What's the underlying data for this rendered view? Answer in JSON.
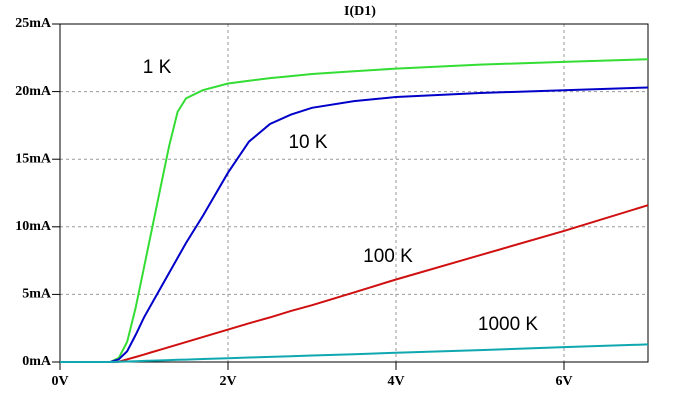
{
  "chart_data": {
    "type": "line",
    "title": "I(D1)",
    "title_color": "#00c000",
    "x": [
      0,
      0.6,
      0.7,
      0.8,
      0.9,
      1.0,
      1.1,
      1.2,
      1.3,
      1.4,
      1.5,
      1.7,
      2.0,
      2.25,
      2.5,
      2.75,
      3,
      3.5,
      4,
      5,
      6,
      7
    ],
    "series": [
      {
        "name": "1 K",
        "color": "#33dd33",
        "values": [
          0,
          0,
          0.3,
          1.5,
          4,
          7,
          10,
          13,
          16,
          18.5,
          19.5,
          20.1,
          20.6,
          20.8,
          21.0,
          21.15,
          21.3,
          21.5,
          21.7,
          22.0,
          22.2,
          22.4
        ]
      },
      {
        "name": "10 K",
        "color": "#0000c8",
        "values": [
          0,
          0,
          0.2,
          0.8,
          2,
          3.3,
          4.4,
          5.5,
          6.6,
          7.7,
          8.8,
          10.8,
          14,
          16.3,
          17.6,
          18.3,
          18.8,
          19.3,
          19.6,
          19.9,
          20.1,
          20.3
        ]
      },
      {
        "name": "100 K",
        "color": "#d01010",
        "values": [
          0,
          0,
          0.02,
          0.2,
          0.37,
          0.55,
          0.74,
          0.92,
          1.1,
          1.29,
          1.47,
          1.84,
          2.4,
          2.86,
          3.3,
          3.78,
          4.2,
          5.15,
          6.1,
          7.9,
          9.7,
          11.6
        ]
      },
      {
        "name": "1000 K",
        "color": "#10a8b0",
        "values": [
          0,
          0,
          0.02,
          0.04,
          0.06,
          0.08,
          0.1,
          0.12,
          0.14,
          0.16,
          0.18,
          0.22,
          0.28,
          0.33,
          0.38,
          0.43,
          0.48,
          0.58,
          0.68,
          0.88,
          1.1,
          1.3
        ]
      }
    ],
    "xlim": [
      0,
      7
    ],
    "xticks": [
      {
        "value": 0,
        "label": "0V"
      },
      {
        "value": 2,
        "label": "2V"
      },
      {
        "value": 4,
        "label": "4V"
      },
      {
        "value": 6,
        "label": "6V"
      }
    ],
    "ylim": [
      0,
      25
    ],
    "yticks": [
      {
        "value": 0,
        "label": "0mA"
      },
      {
        "value": 5,
        "label": "5mA"
      },
      {
        "value": 10,
        "label": "10mA"
      },
      {
        "value": 15,
        "label": "15mA"
      },
      {
        "value": 20,
        "label": "20mA"
      },
      {
        "value": 25,
        "label": "25mA"
      }
    ],
    "grid": true
  }
}
